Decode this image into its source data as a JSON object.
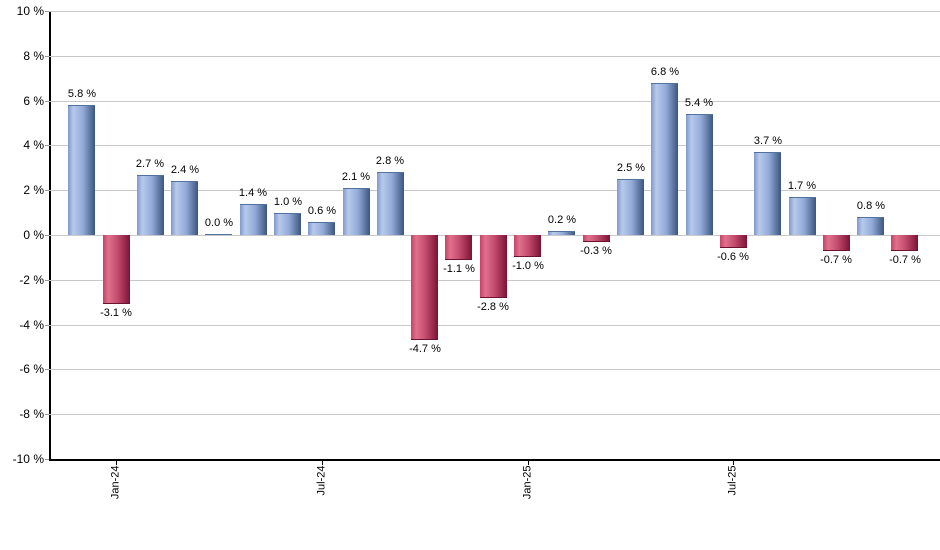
{
  "chart_data": {
    "type": "bar",
    "title": "",
    "xlabel": "",
    "ylabel": "",
    "ylim": [
      -10,
      10
    ],
    "y_tick_step": 2,
    "grid": true,
    "legend": false,
    "y_tick_labels": [
      "10 %",
      "8 %",
      "6 %",
      "4 %",
      "2 %",
      "0 %",
      "-2 %",
      "-4 %",
      "-6 %",
      "-8 %",
      "-10 %"
    ],
    "y_tick_values": [
      10,
      8,
      6,
      4,
      2,
      0,
      -2,
      -4,
      -6,
      -8,
      -10
    ],
    "values": [
      5.8,
      -3.1,
      2.7,
      2.4,
      0.0,
      1.4,
      1.0,
      0.6,
      2.1,
      2.8,
      -4.7,
      -1.1,
      -2.8,
      -1.0,
      0.2,
      -0.3,
      2.5,
      6.8,
      5.4,
      -0.6,
      3.7,
      1.7,
      -0.7,
      0.8,
      -0.7
    ],
    "value_labels": [
      "5.8 %",
      "-3.1 %",
      "2.7 %",
      "2.4 %",
      "0.0 %",
      "1.4 %",
      "1.0 %",
      "0.6 %",
      "2.1 %",
      "2.8 %",
      "-4.7 %",
      "-1.1 %",
      "-2.8 %",
      "-1.0 %",
      "0.2 %",
      "-0.3 %",
      "2.5 %",
      "6.8 %",
      "5.4 %",
      "-0.6 %",
      "3.7 %",
      "1.7 %",
      "-0.7 %",
      "0.8 %",
      "-0.7 %"
    ],
    "x_ticks": [
      {
        "index": 1,
        "label": "Jan-24"
      },
      {
        "index": 7,
        "label": "Jul-24"
      },
      {
        "index": 13,
        "label": "Jan-25"
      },
      {
        "index": 19,
        "label": "Jul-25"
      }
    ],
    "colors": {
      "positive_edge_left": "#8099c9",
      "positive_light": "#b7c9ec",
      "positive_mid": "#93abd8",
      "positive_edge_right": "#3a567f",
      "positive_cap": "#51719f",
      "negative_edge_left": "#c64265",
      "negative_light": "#e0718d",
      "negative_mid": "#c14a6b",
      "negative_edge_right": "#7c1334",
      "negative_cap": "#6e1030",
      "gridline": "#c9c9c9",
      "axis": "#000000",
      "text": "#000000"
    }
  }
}
